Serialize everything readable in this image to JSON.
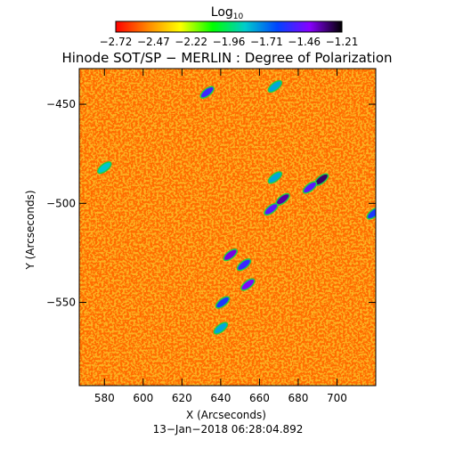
{
  "chart_data": {
    "type": "heatmap",
    "title": "Hinode SOT/SP − MERLIN : Degree of Polarization",
    "xlabel": "X (Arcseconds)",
    "ylabel": "Y (Arcseconds)",
    "timestamp": "13−Jan−2018 06:28:04.892",
    "xlim": [
      567,
      720
    ],
    "ylim": [
      -592,
      -432
    ],
    "x_ticks": [
      580,
      600,
      620,
      640,
      660,
      680,
      700
    ],
    "x_tick_labels": [
      "580",
      "600",
      "620",
      "640",
      "660",
      "680",
      "700"
    ],
    "y_ticks": [
      -450,
      -500,
      -550
    ],
    "y_tick_labels": [
      "−450",
      "−500",
      "−550"
    ],
    "colorbar": {
      "title_base": "Log",
      "title_sub": "10",
      "range": [
        -2.72,
        -1.21
      ],
      "tick_labels": [
        "−2.72",
        "−2.47",
        "−2.22",
        "−1.96",
        "−1.71",
        "−1.46",
        "−1.21"
      ],
      "colors": [
        "#ff0000",
        "#ff8800",
        "#ffff00",
        "#00ff00",
        "#00cccc",
        "#0044ff",
        "#8800ff",
        "#000000"
      ]
    },
    "background_level": -2.55,
    "features": [
      {
        "x": 645,
        "y": -526,
        "level": -1.4
      },
      {
        "x": 652,
        "y": -531,
        "level": -1.55
      },
      {
        "x": 654,
        "y": -541,
        "level": -1.45
      },
      {
        "x": 641,
        "y": -550,
        "level": -1.6
      },
      {
        "x": 672,
        "y": -498,
        "level": -1.35
      },
      {
        "x": 666,
        "y": -503,
        "level": -1.5
      },
      {
        "x": 692,
        "y": -488,
        "level": -1.3
      },
      {
        "x": 686,
        "y": -492,
        "level": -1.5
      },
      {
        "x": 633,
        "y": -444,
        "level": -1.55
      },
      {
        "x": 668,
        "y": -487,
        "level": -1.8
      },
      {
        "x": 640,
        "y": -563,
        "level": -1.8
      },
      {
        "x": 580,
        "y": -482,
        "level": -1.85
      },
      {
        "x": 668,
        "y": -441,
        "level": -1.8
      },
      {
        "x": 719,
        "y": -505,
        "level": -1.6
      }
    ]
  }
}
